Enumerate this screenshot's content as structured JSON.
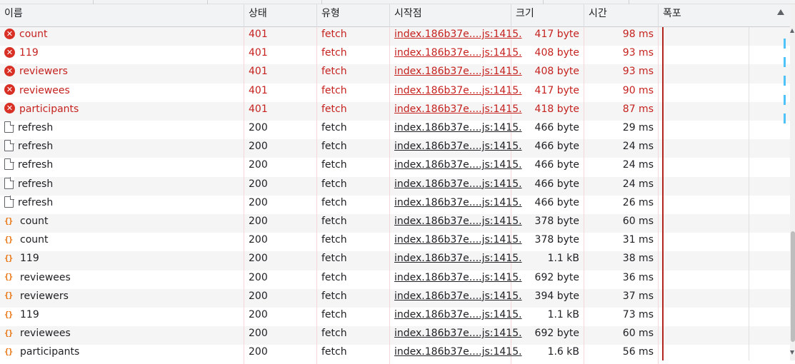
{
  "columns": {
    "name": "이름",
    "status": "상태",
    "type": "유형",
    "initiator": "시작점",
    "size": "크기",
    "time": "시간",
    "waterfall": "폭포"
  },
  "rows": [
    {
      "icon": "error-icon",
      "name": "count",
      "status": "401",
      "type": "fetch",
      "initiator": "index.186b37e....js:1415.",
      "size": "417 byte",
      "time": "98 ms",
      "error": true
    },
    {
      "icon": "error-icon",
      "name": "119",
      "status": "401",
      "type": "fetch",
      "initiator": "index.186b37e....js:1415.",
      "size": "408 byte",
      "time": "93 ms",
      "error": true
    },
    {
      "icon": "error-icon",
      "name": "reviewers",
      "status": "401",
      "type": "fetch",
      "initiator": "index.186b37e....js:1415.",
      "size": "408 byte",
      "time": "93 ms",
      "error": true
    },
    {
      "icon": "error-icon",
      "name": "reviewees",
      "status": "401",
      "type": "fetch",
      "initiator": "index.186b37e....js:1415.",
      "size": "417 byte",
      "time": "90 ms",
      "error": true
    },
    {
      "icon": "error-icon",
      "name": "participants",
      "status": "401",
      "type": "fetch",
      "initiator": "index.186b37e....js:1415.",
      "size": "418 byte",
      "time": "87 ms",
      "error": true
    },
    {
      "icon": "document-icon",
      "name": "refresh",
      "status": "200",
      "type": "fetch",
      "initiator": "index.186b37e....js:1415.",
      "size": "466 byte",
      "time": "29 ms",
      "error": false
    },
    {
      "icon": "document-icon",
      "name": "refresh",
      "status": "200",
      "type": "fetch",
      "initiator": "index.186b37e....js:1415.",
      "size": "466 byte",
      "time": "24 ms",
      "error": false
    },
    {
      "icon": "document-icon",
      "name": "refresh",
      "status": "200",
      "type": "fetch",
      "initiator": "index.186b37e....js:1415.",
      "size": "466 byte",
      "time": "24 ms",
      "error": false
    },
    {
      "icon": "document-icon",
      "name": "refresh",
      "status": "200",
      "type": "fetch",
      "initiator": "index.186b37e....js:1415.",
      "size": "466 byte",
      "time": "24 ms",
      "error": false
    },
    {
      "icon": "document-icon",
      "name": "refresh",
      "status": "200",
      "type": "fetch",
      "initiator": "index.186b37e....js:1415.",
      "size": "466 byte",
      "time": "26 ms",
      "error": false
    },
    {
      "icon": "json-icon",
      "name": "count",
      "status": "200",
      "type": "fetch",
      "initiator": "index.186b37e....js:1415.",
      "size": "378 byte",
      "time": "60 ms",
      "error": false
    },
    {
      "icon": "json-icon",
      "name": "count",
      "status": "200",
      "type": "fetch",
      "initiator": "index.186b37e....js:1415.",
      "size": "378 byte",
      "time": "31 ms",
      "error": false
    },
    {
      "icon": "json-icon",
      "name": "119",
      "status": "200",
      "type": "fetch",
      "initiator": "index.186b37e....js:1415.",
      "size": "1.1 kB",
      "time": "38 ms",
      "error": false
    },
    {
      "icon": "json-icon",
      "name": "reviewees",
      "status": "200",
      "type": "fetch",
      "initiator": "index.186b37e....js:1415.",
      "size": "692 byte",
      "time": "36 ms",
      "error": false
    },
    {
      "icon": "json-icon",
      "name": "reviewers",
      "status": "200",
      "type": "fetch",
      "initiator": "index.186b37e....js:1415.",
      "size": "394 byte",
      "time": "37 ms",
      "error": false
    },
    {
      "icon": "json-icon",
      "name": "119",
      "status": "200",
      "type": "fetch",
      "initiator": "index.186b37e....js:1415.",
      "size": "1.1 kB",
      "time": "73 ms",
      "error": false
    },
    {
      "icon": "json-icon",
      "name": "reviewees",
      "status": "200",
      "type": "fetch",
      "initiator": "index.186b37e....js:1415.",
      "size": "692 byte",
      "time": "60 ms",
      "error": false
    },
    {
      "icon": "json-icon",
      "name": "participants",
      "status": "200",
      "type": "fetch",
      "initiator": "index.186b37e....js:1415.",
      "size": "1.6 kB",
      "time": "56 ms",
      "error": false
    }
  ],
  "colors": {
    "error_text": "#c5221f",
    "waterfall_line": "#b3261e",
    "waterfall_bar": "#4fc3f7",
    "json_icon": "#e8710a"
  }
}
